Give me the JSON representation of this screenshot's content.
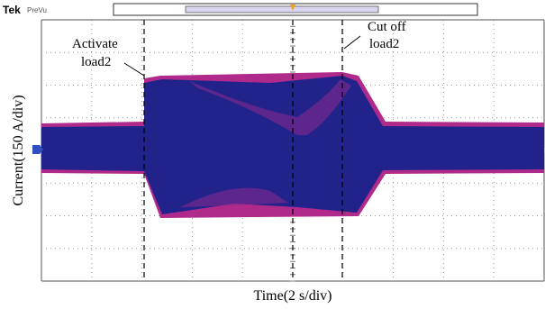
{
  "header": {
    "brand": "Tek",
    "mode": "PreVu"
  },
  "annotations": {
    "activate": [
      "Activate",
      "load2"
    ],
    "cut_off": [
      "Cut off",
      "load2"
    ]
  },
  "axes": {
    "y_label": "Current(150 A/div)",
    "x_label": "Time(2 s/div)"
  }
}
